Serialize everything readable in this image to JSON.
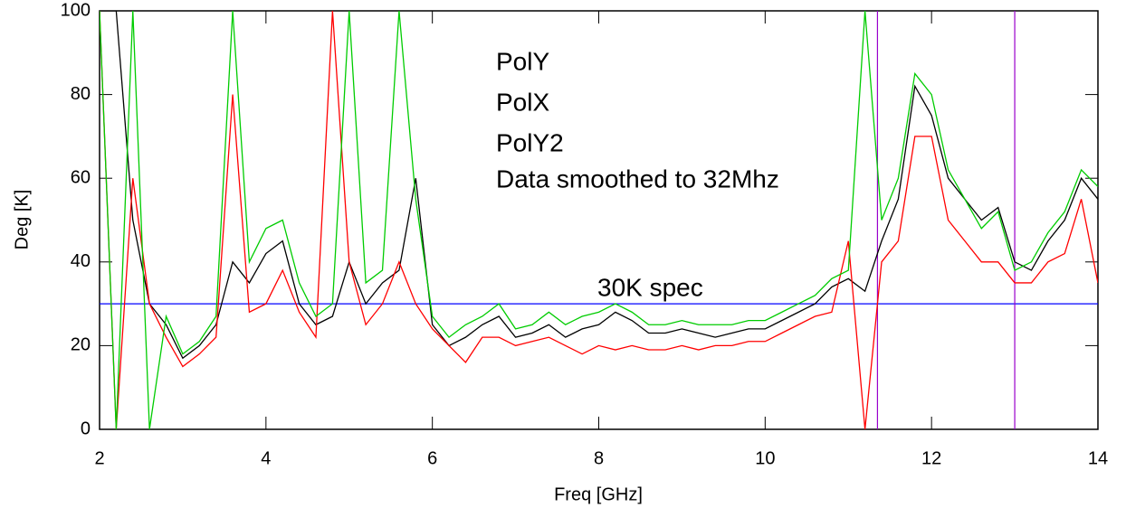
{
  "chart_data": {
    "type": "line",
    "x_label": "Freq [GHz]",
    "y_label": "Deg [K]",
    "xlim": [
      2,
      14
    ],
    "ylim": [
      0,
      100
    ],
    "xticks": [
      2,
      4,
      6,
      8,
      10,
      12,
      14
    ],
    "yticks": [
      0,
      20,
      40,
      60,
      80,
      100
    ],
    "x": [
      2.0,
      2.2,
      2.4,
      2.6,
      2.8,
      3.0,
      3.2,
      3.4,
      3.6,
      3.8,
      4.0,
      4.2,
      4.4,
      4.6,
      4.8,
      5.0,
      5.2,
      5.4,
      5.6,
      5.8,
      6.0,
      6.2,
      6.4,
      6.6,
      6.8,
      7.0,
      7.2,
      7.4,
      7.6,
      7.8,
      8.0,
      8.2,
      8.4,
      8.6,
      8.8,
      9.0,
      9.2,
      9.4,
      9.6,
      9.8,
      10.0,
      10.2,
      10.4,
      10.6,
      10.8,
      11.0,
      11.2,
      11.4,
      11.6,
      11.8,
      12.0,
      12.2,
      12.4,
      12.6,
      12.8,
      13.0,
      13.2,
      13.4,
      13.6,
      13.8,
      14.0
    ],
    "series": [
      {
        "name": "PolY",
        "color": "#000000",
        "values": [
          100,
          100,
          50,
          30,
          25,
          17,
          20,
          25,
          40,
          35,
          42,
          45,
          30,
          25,
          27,
          40,
          30,
          35,
          38,
          60,
          25,
          20,
          22,
          25,
          27,
          22,
          23,
          25,
          22,
          24,
          25,
          28,
          26,
          23,
          23,
          24,
          23,
          22,
          23,
          24,
          24,
          26,
          28,
          30,
          34,
          36,
          33,
          45,
          55,
          82,
          75,
          60,
          55,
          50,
          53,
          40,
          38,
          45,
          50,
          60,
          55
        ]
      },
      {
        "name": "PolX",
        "color": "#ff0000",
        "values": [
          100,
          0,
          60,
          30,
          22,
          15,
          18,
          22,
          80,
          28,
          30,
          38,
          28,
          22,
          100,
          40,
          25,
          30,
          40,
          30,
          24,
          20,
          16,
          22,
          22,
          20,
          21,
          22,
          20,
          18,
          20,
          19,
          20,
          19,
          19,
          20,
          19,
          20,
          20,
          21,
          21,
          23,
          25,
          27,
          28,
          45,
          0,
          40,
          45,
          70,
          70,
          50,
          45,
          40,
          40,
          35,
          35,
          40,
          42,
          55,
          35
        ]
      },
      {
        "name": "PolY2",
        "color": "#00cc00",
        "values": [
          100,
          0,
          100,
          0,
          27,
          18,
          21,
          27,
          100,
          40,
          48,
          50,
          35,
          27,
          30,
          100,
          35,
          38,
          100,
          55,
          27,
          22,
          25,
          27,
          30,
          24,
          25,
          28,
          25,
          27,
          28,
          30,
          28,
          25,
          25,
          26,
          25,
          25,
          25,
          26,
          26,
          28,
          30,
          32,
          36,
          38,
          100,
          50,
          60,
          85,
          80,
          62,
          55,
          48,
          52,
          38,
          40,
          47,
          52,
          62,
          58
        ]
      }
    ],
    "annotation": "Data smoothed to 32Mhz",
    "hlines": [
      {
        "y": 30,
        "color": "#0000ff",
        "label": "30K spec"
      }
    ],
    "vlines": [
      {
        "x": 11.35,
        "color": "#9900cc"
      },
      {
        "x": 13.0,
        "color": "#9900cc"
      }
    ]
  }
}
